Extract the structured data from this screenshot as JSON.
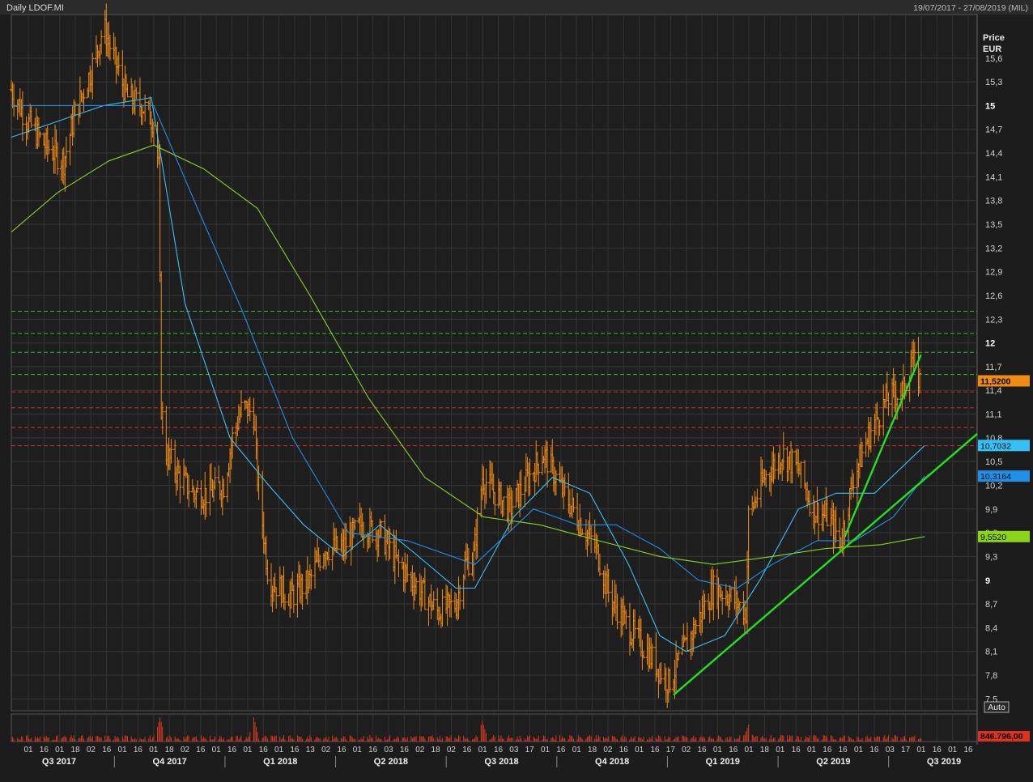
{
  "header": {
    "title": "Daily LDOF.MI",
    "range": "19/07/2017 - 27/08/2019 (MIL)"
  },
  "chart_data": {
    "type": "bar",
    "subtype": "ohlc-daily",
    "price_axis": {
      "title_lines": [
        "Price",
        "EUR"
      ],
      "ticks": [
        "15,6",
        "15,3",
        "15",
        "14,7",
        "14,4",
        "14,1",
        "13,8",
        "13,5",
        "13,2",
        "12,9",
        "12,6",
        "12,3",
        "12",
        "11,7",
        "11,4",
        "11,1",
        "10,8",
        "10,5",
        "10,2",
        "9,9",
        "9,6",
        "9,3",
        "9",
        "8,7",
        "8,4",
        "8,1",
        "7,8",
        "7,5"
      ],
      "bold_ticks": [
        "15",
        "12",
        "9"
      ],
      "ylim": [
        7.35,
        16.15
      ]
    },
    "time_axis": {
      "day_ticks": [
        "01",
        "16",
        "01",
        "18",
        "02",
        "16",
        "01",
        "16",
        "01",
        "18",
        "02",
        "16",
        "01",
        "16",
        "01",
        "16",
        "01",
        "16",
        "13",
        "02",
        "16",
        "01",
        "16",
        "03",
        "16",
        "02",
        "18",
        "02",
        "16",
        "01",
        "16",
        "03",
        "17",
        "01",
        "16",
        "01",
        "18",
        "02",
        "16",
        "01",
        "16",
        "17",
        "02",
        "16",
        "01",
        "16",
        "01",
        "18",
        "01",
        "16",
        "01",
        "16",
        "16",
        "01",
        "16",
        "03",
        "17",
        "01",
        "16",
        "01",
        "16"
      ],
      "quarters": [
        "Q3 2017",
        "Q4 2017",
        "Q1 2018",
        "Q2 2018",
        "Q3 2018",
        "Q4 2018",
        "Q1 2019",
        "Q2 2019",
        "Q3 2019"
      ]
    },
    "horizontal_levels": {
      "green": [
        12.4,
        12.12,
        11.88,
        11.6
      ],
      "red": [
        11.38,
        11.18,
        10.93,
        10.7
      ]
    },
    "last_values": [
      {
        "label": "11,5200",
        "value": 11.52,
        "color": "#f08c14"
      },
      {
        "label": "10,7032",
        "value": 10.7032,
        "color": "#35c1f5"
      },
      {
        "label": "10,3164",
        "value": 10.3164,
        "color": "#1f8fe8"
      },
      {
        "label": "9,5520",
        "value": 9.552,
        "color": "#8ad41a"
      }
    ],
    "anchors": [
      [
        "2017-07-19",
        15.2
      ],
      [
        "2017-08-01",
        14.8
      ],
      [
        "2017-08-15",
        14.5
      ],
      [
        "2017-08-30",
        14.3
      ],
      [
        "2017-09-08",
        14.9
      ],
      [
        "2017-09-20",
        15.4
      ],
      [
        "2017-10-01",
        16.0
      ],
      [
        "2017-10-09",
        15.6
      ],
      [
        "2017-10-20",
        15.1
      ],
      [
        "2017-11-01",
        15.0
      ],
      [
        "2017-11-10",
        14.8
      ],
      [
        "2017-11-14",
        14.2
      ],
      [
        "2017-11-16",
        11.2
      ],
      [
        "2017-11-20",
        10.6
      ],
      [
        "2017-12-01",
        10.3
      ],
      [
        "2017-12-12",
        10.1
      ],
      [
        "2017-12-24",
        10.1
      ],
      [
        "2018-01-05",
        10.2
      ],
      [
        "2018-01-12",
        10.8
      ],
      [
        "2018-01-20",
        11.2
      ],
      [
        "2018-01-29",
        11.1
      ],
      [
        "2018-02-01",
        10.3
      ],
      [
        "2018-02-10",
        9.0
      ],
      [
        "2018-02-28",
        8.8
      ],
      [
        "2018-03-15",
        9.0
      ],
      [
        "2018-03-26",
        9.4
      ],
      [
        "2018-04-10",
        9.4
      ],
      [
        "2018-04-25",
        9.7
      ],
      [
        "2018-05-10",
        9.6
      ],
      [
        "2018-05-25",
        9.2
      ],
      [
        "2018-06-10",
        8.9
      ],
      [
        "2018-06-25",
        8.6
      ],
      [
        "2018-07-10",
        8.7
      ],
      [
        "2018-07-17",
        9.2
      ],
      [
        "2018-07-24",
        9.3
      ],
      [
        "2018-07-31",
        10.3
      ],
      [
        "2018-08-10",
        10.1
      ],
      [
        "2018-08-22",
        9.9
      ],
      [
        "2018-09-06",
        10.3
      ],
      [
        "2018-09-18",
        10.6
      ],
      [
        "2018-10-01",
        10.2
      ],
      [
        "2018-10-15",
        9.8
      ],
      [
        "2018-10-30",
        9.4
      ],
      [
        "2018-11-10",
        8.8
      ],
      [
        "2018-11-25",
        8.4
      ],
      [
        "2018-12-10",
        8.1
      ],
      [
        "2018-12-27",
        7.7
      ],
      [
        "2019-01-05",
        8.0
      ],
      [
        "2019-01-20",
        8.5
      ],
      [
        "2019-02-01",
        8.9
      ],
      [
        "2019-02-14",
        8.8
      ],
      [
        "2019-02-27",
        8.6
      ],
      [
        "2019-03-01",
        9.8
      ],
      [
        "2019-03-14",
        10.3
      ],
      [
        "2019-03-28",
        10.6
      ],
      [
        "2019-04-10",
        10.4
      ],
      [
        "2019-04-22",
        9.9
      ],
      [
        "2019-05-03",
        9.8
      ],
      [
        "2019-05-14",
        9.5
      ],
      [
        "2019-05-24",
        10.3
      ],
      [
        "2019-06-07",
        10.9
      ],
      [
        "2019-06-20",
        11.3
      ],
      [
        "2019-07-03",
        11.4
      ],
      [
        "2019-07-10",
        11.8
      ],
      [
        "2019-07-16",
        11.52
      ]
    ],
    "moving_averages": [
      {
        "color": "#35c1f5",
        "points": [
          [
            "2017-07-19",
            14.6
          ],
          [
            "2017-08-25",
            14.8
          ],
          [
            "2017-10-01",
            15.0
          ],
          [
            "2017-11-08",
            15.1
          ],
          [
            "2017-12-05",
            12.5
          ],
          [
            "2018-01-10",
            10.8
          ],
          [
            "2018-02-10",
            10.2
          ],
          [
            "2018-03-10",
            9.7
          ],
          [
            "2018-04-10",
            9.3
          ],
          [
            "2018-05-10",
            9.7
          ],
          [
            "2018-06-10",
            9.3
          ],
          [
            "2018-07-10",
            8.9
          ],
          [
            "2018-07-25",
            8.9
          ],
          [
            "2018-08-25",
            9.8
          ],
          [
            "2018-09-25",
            10.3
          ],
          [
            "2018-10-25",
            10.1
          ],
          [
            "2018-11-25",
            9.2
          ],
          [
            "2018-12-20",
            8.3
          ],
          [
            "2019-01-10",
            8.1
          ],
          [
            "2019-02-10",
            8.3
          ],
          [
            "2019-03-10",
            9.0
          ],
          [
            "2019-04-10",
            9.9
          ],
          [
            "2019-05-10",
            10.1
          ],
          [
            "2019-06-10",
            10.1
          ],
          [
            "2019-07-20",
            10.7032
          ]
        ]
      },
      {
        "color": "#1f8fe8",
        "points": [
          [
            "2017-07-19",
            15.0
          ],
          [
            "2017-09-15",
            15.0
          ],
          [
            "2017-11-10",
            15.0
          ],
          [
            "2017-12-15",
            13.7
          ],
          [
            "2018-01-20",
            12.4
          ],
          [
            "2018-03-01",
            10.8
          ],
          [
            "2018-04-15",
            9.6
          ],
          [
            "2018-06-01",
            9.5
          ],
          [
            "2018-07-25",
            9.2
          ],
          [
            "2018-09-10",
            9.9
          ],
          [
            "2018-10-15",
            9.7
          ],
          [
            "2018-11-15",
            9.7
          ],
          [
            "2018-12-20",
            9.4
          ],
          [
            "2019-01-20",
            9.0
          ],
          [
            "2019-02-20",
            8.9
          ],
          [
            "2019-03-20",
            9.2
          ],
          [
            "2019-04-25",
            9.5
          ],
          [
            "2019-05-25",
            9.5
          ],
          [
            "2019-06-25",
            9.8
          ],
          [
            "2019-07-20",
            10.3164
          ]
        ]
      },
      {
        "color": "#8ad41a",
        "points": [
          [
            "2017-07-19",
            13.4
          ],
          [
            "2017-08-25",
            13.9
          ],
          [
            "2017-10-05",
            14.3
          ],
          [
            "2017-11-10",
            14.5
          ],
          [
            "2017-12-20",
            14.2
          ],
          [
            "2018-02-01",
            13.7
          ],
          [
            "2018-03-15",
            12.6
          ],
          [
            "2018-05-01",
            11.3
          ],
          [
            "2018-06-15",
            10.3
          ],
          [
            "2018-08-01",
            9.8
          ],
          [
            "2018-09-15",
            9.7
          ],
          [
            "2018-11-01",
            9.5
          ],
          [
            "2018-12-20",
            9.3
          ],
          [
            "2019-02-01",
            9.2
          ],
          [
            "2019-03-20",
            9.3
          ],
          [
            "2019-05-01",
            9.4
          ],
          [
            "2019-06-15",
            9.45
          ],
          [
            "2019-07-20",
            9.552
          ]
        ]
      }
    ],
    "trendlines": [
      {
        "color": "#22e022",
        "from": [
          "2018-12-31",
          7.55
        ],
        "to": [
          "2019-08-31",
          10.85
        ]
      },
      {
        "color": "#22e022",
        "from": [
          "2019-05-17",
          9.55
        ],
        "to": [
          "2019-07-17",
          11.85
        ]
      }
    ],
    "volume": {
      "label": "846.796,00",
      "spikes": [
        [
          "2017-11-15",
          1.0
        ],
        [
          "2018-01-29",
          1.0
        ],
        [
          "2018-07-31",
          0.85
        ],
        [
          "2019-03-01",
          0.7
        ]
      ]
    },
    "auto_label": "Auto"
  }
}
